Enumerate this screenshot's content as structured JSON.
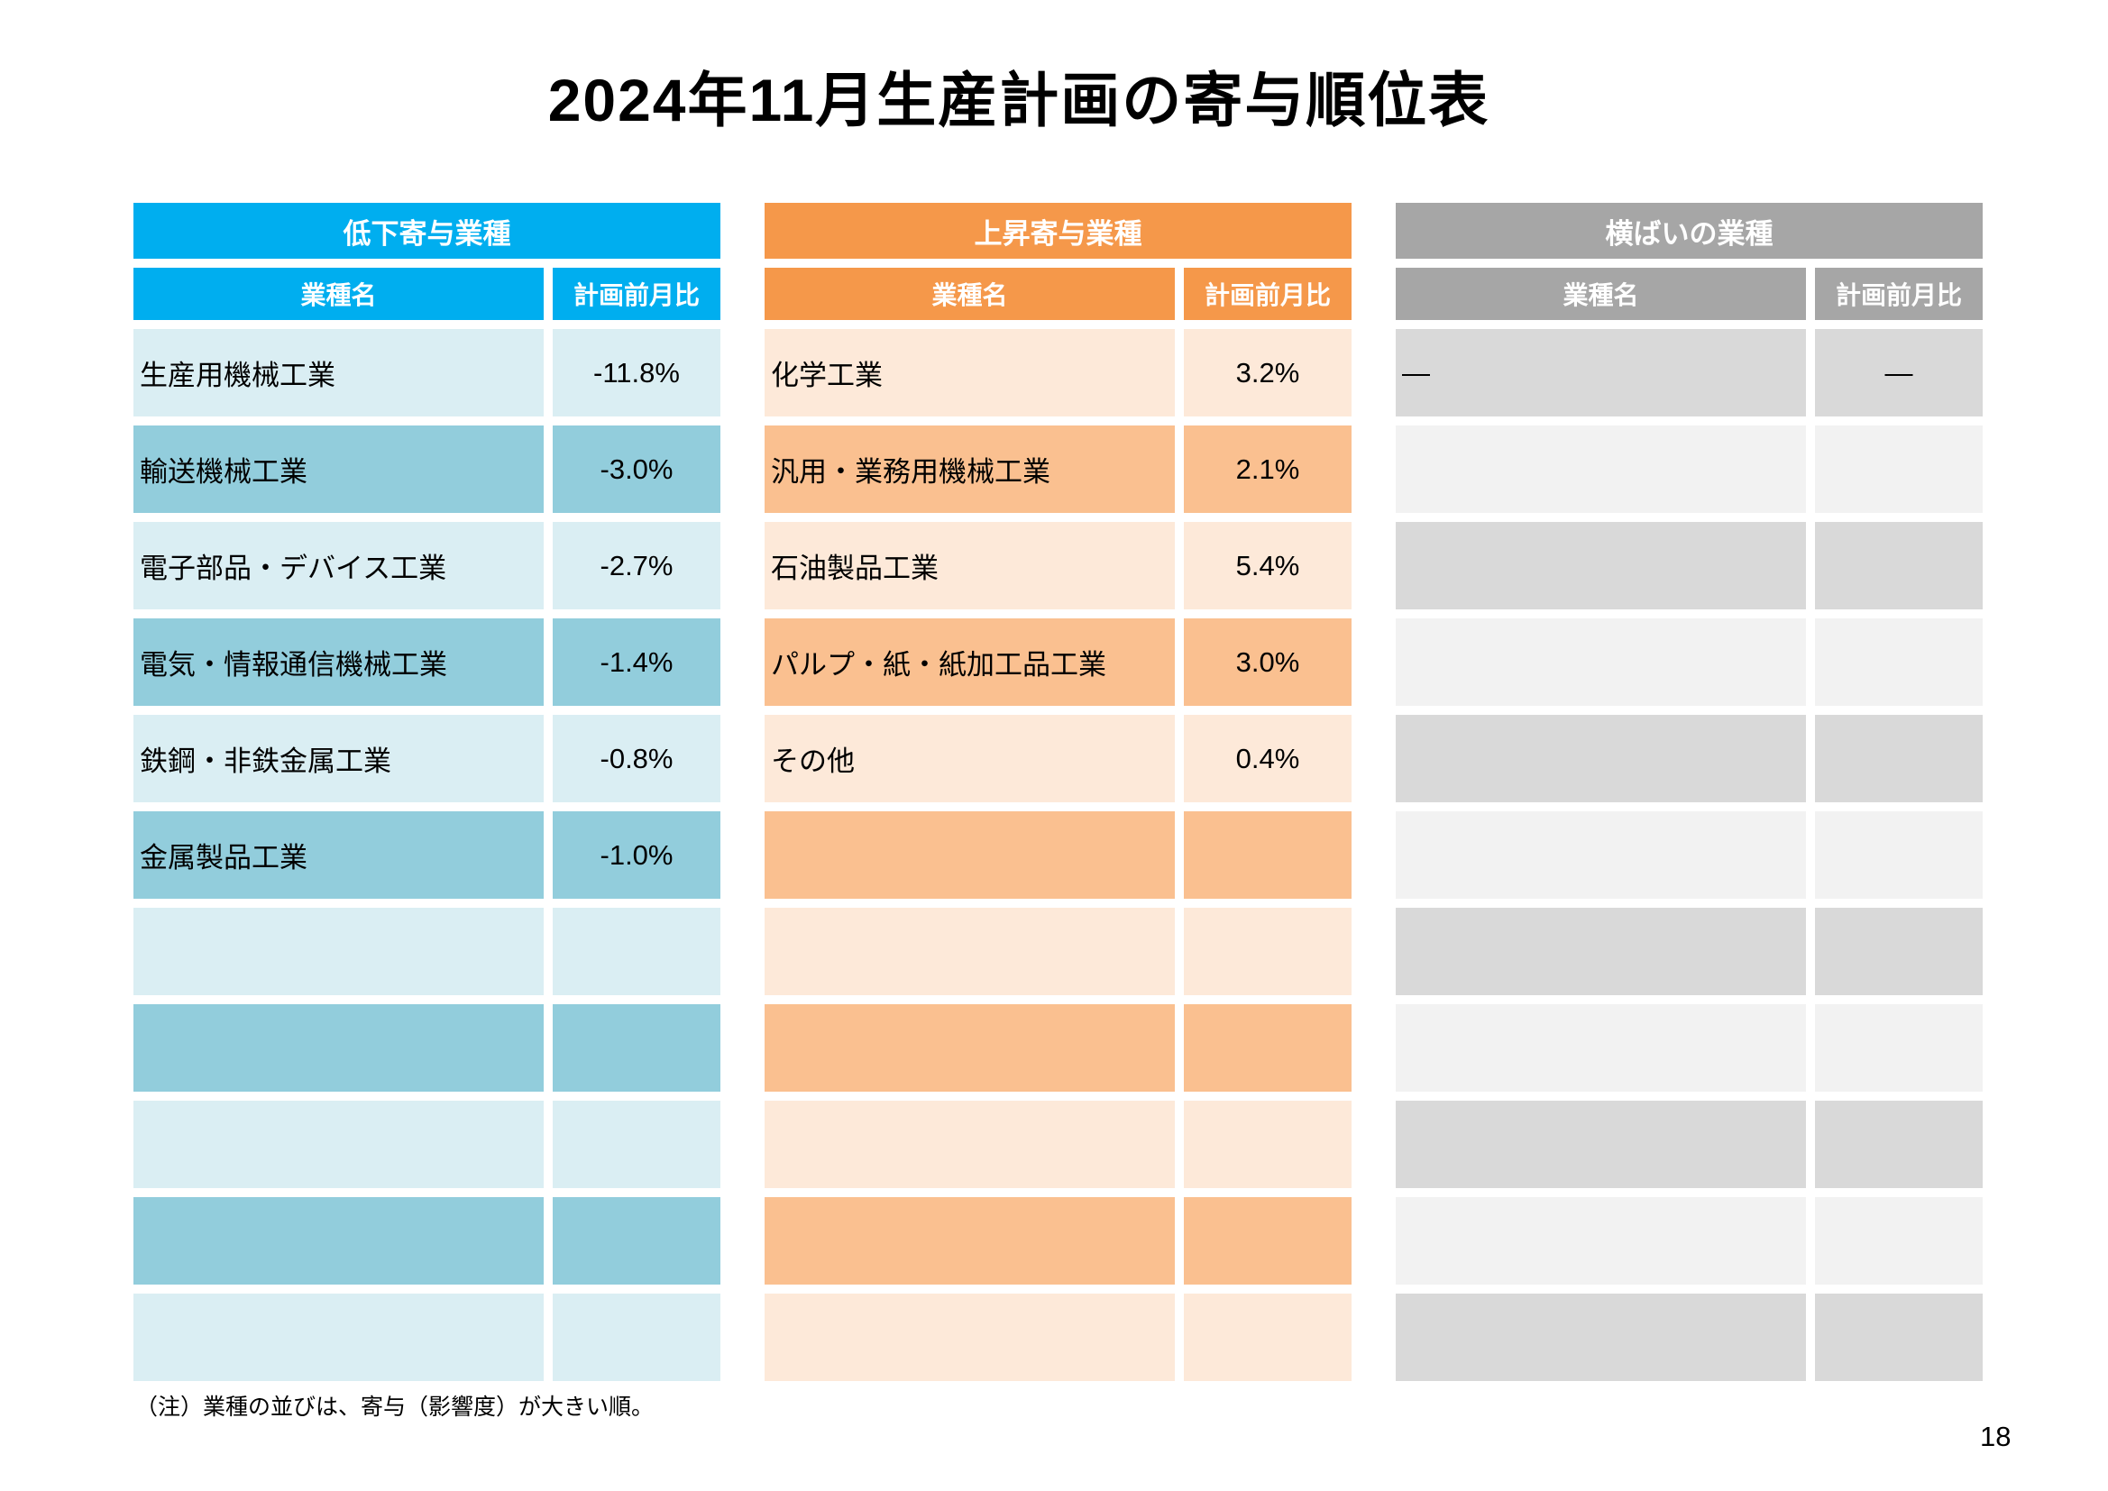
{
  "page": {
    "title": "2024年11月生産計画の寄与順位表",
    "note": "（注）業種の並びは、寄与（影響度）が大きい順。",
    "page_number": "18"
  },
  "tables": [
    {
      "name": "低下寄与業種",
      "columns": {
        "industry": "業種名",
        "plan_mom": "計画前月比"
      },
      "colors": {
        "header": "#00AEEF",
        "row_bands": [
          "#DAEEF3",
          "#92CDDC"
        ]
      },
      "rows": [
        {
          "industry": "生産用機械工業",
          "value": "-11.8%"
        },
        {
          "industry": "輸送機械工業",
          "value": "-3.0%"
        },
        {
          "industry": "電子部品・デバイス工業",
          "value": "-2.7%"
        },
        {
          "industry": "電気・情報通信機械工業",
          "value": "-1.4%"
        },
        {
          "industry": "鉄鋼・非鉄金属工業",
          "value": "-0.8%"
        },
        {
          "industry": "金属製品工業",
          "value": "-1.0%"
        },
        {
          "industry": "",
          "value": ""
        },
        {
          "industry": "",
          "value": ""
        },
        {
          "industry": "",
          "value": ""
        },
        {
          "industry": "",
          "value": ""
        },
        {
          "industry": "",
          "value": ""
        }
      ]
    },
    {
      "name": "上昇寄与業種",
      "columns": {
        "industry": "業種名",
        "plan_mom": "計画前月比"
      },
      "colors": {
        "header": "#F5984A",
        "row_bands": [
          "#FDE9D9",
          "#FAC090"
        ]
      },
      "rows": [
        {
          "industry": "化学工業",
          "value": "3.2%"
        },
        {
          "industry": "汎用・業務用機械工業",
          "value": "2.1%"
        },
        {
          "industry": "石油製品工業",
          "value": "5.4%"
        },
        {
          "industry": "パルプ・紙・紙加工品工業",
          "value": "3.0%"
        },
        {
          "industry": "その他",
          "value": "0.4%"
        },
        {
          "industry": "",
          "value": ""
        },
        {
          "industry": "",
          "value": ""
        },
        {
          "industry": "",
          "value": ""
        },
        {
          "industry": "",
          "value": ""
        },
        {
          "industry": "",
          "value": ""
        },
        {
          "industry": "",
          "value": ""
        }
      ]
    },
    {
      "name": "横ばいの業種",
      "columns": {
        "industry": "業種名",
        "plan_mom": "計画前月比"
      },
      "colors": {
        "header": "#A6A6A6",
        "row_bands": [
          "#D9D9D9",
          "#F2F2F2"
        ]
      },
      "rows": [
        {
          "industry": "―",
          "value": "―"
        },
        {
          "industry": "",
          "value": ""
        },
        {
          "industry": "",
          "value": ""
        },
        {
          "industry": "",
          "value": ""
        },
        {
          "industry": "",
          "value": ""
        },
        {
          "industry": "",
          "value": ""
        },
        {
          "industry": "",
          "value": ""
        },
        {
          "industry": "",
          "value": ""
        },
        {
          "industry": "",
          "value": ""
        },
        {
          "industry": "",
          "value": ""
        },
        {
          "industry": "",
          "value": ""
        }
      ]
    }
  ]
}
